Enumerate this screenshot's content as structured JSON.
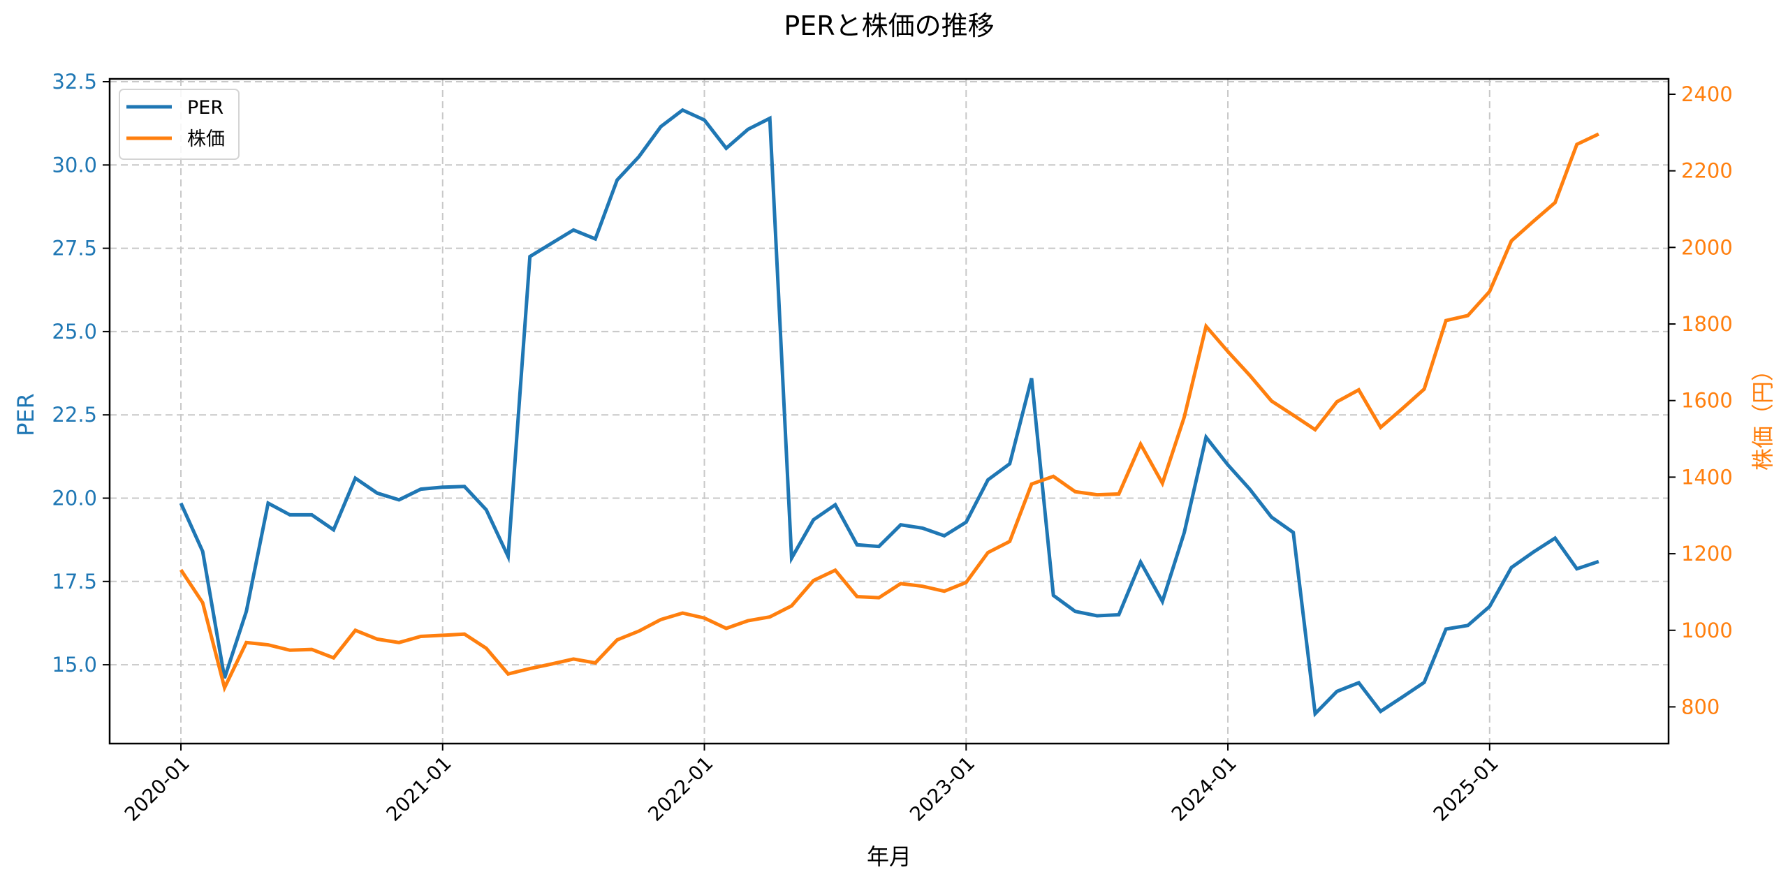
{
  "chart_data": {
    "type": "line",
    "title": "PERと株価の推移",
    "xlabel": "年月",
    "ylabel": "PER",
    "ylabel_right": "株価（円）",
    "ylim": [
      12.9,
      32.7
    ],
    "ylim_right": [
      730,
      2420
    ],
    "grid": true,
    "legend_position": "upper left",
    "x_ticks": [
      "2020-01",
      "2021-01",
      "2022-01",
      "2023-01",
      "2024-01",
      "2025-01"
    ],
    "y_ticks_left": [
      "15.0",
      "17.5",
      "20.0",
      "22.5",
      "25.0",
      "27.5",
      "30.0",
      "32.5"
    ],
    "y_ticks_right": [
      "800",
      "1000",
      "1200",
      "1400",
      "1600",
      "1800",
      "2000",
      "2200",
      "2400"
    ],
    "x": [
      "2020-01",
      "2020-02",
      "2020-03",
      "2020-04",
      "2020-05",
      "2020-06",
      "2020-07",
      "2020-08",
      "2020-09",
      "2020-10",
      "2020-11",
      "2020-12",
      "2021-01",
      "2021-02",
      "2021-03",
      "2021-04",
      "2021-05",
      "2021-06",
      "2021-07",
      "2021-08",
      "2021-09",
      "2021-10",
      "2021-11",
      "2021-12",
      "2022-01",
      "2022-02",
      "2022-03",
      "2022-04",
      "2022-05",
      "2022-06",
      "2022-07",
      "2022-08",
      "2022-09",
      "2022-10",
      "2022-11",
      "2022-12",
      "2023-01",
      "2023-02",
      "2023-03",
      "2023-04",
      "2023-05",
      "2023-06",
      "2023-07",
      "2023-08",
      "2023-09",
      "2023-10",
      "2023-11",
      "2023-12",
      "2024-01",
      "2024-02",
      "2024-03",
      "2024-04",
      "2024-05",
      "2024-06",
      "2024-07",
      "2024-08",
      "2024-09",
      "2024-10",
      "2024-11",
      "2024-12",
      "2025-01",
      "2025-02",
      "2025-03",
      "2025-04",
      "2025-05",
      "2025-06"
    ],
    "series": [
      {
        "name": "PER",
        "axis": "left",
        "color": "#1f77b4",
        "values": [
          19.85,
          18.4,
          14.6,
          16.6,
          19.85,
          19.5,
          19.5,
          19.05,
          20.6,
          20.15,
          19.95,
          20.27,
          20.33,
          20.35,
          19.65,
          18.25,
          27.25,
          27.65,
          28.05,
          27.78,
          29.55,
          30.25,
          31.15,
          31.65,
          31.35,
          30.5,
          31.07,
          31.4,
          18.2,
          19.35,
          19.8,
          18.6,
          18.55,
          19.2,
          19.1,
          18.87,
          19.28,
          20.55,
          21.03,
          23.6,
          17.08,
          16.6,
          16.47,
          16.5,
          18.08,
          16.9,
          18.97,
          21.83,
          21.0,
          20.27,
          19.43,
          18.97,
          13.53,
          14.2,
          14.46,
          13.6,
          14.03,
          14.47,
          16.07,
          16.18,
          16.75,
          17.92,
          18.38,
          18.8,
          17.88,
          18.1
        ]
      },
      {
        "name": "株価",
        "axis": "right",
        "color": "#ff7f0e",
        "values": [
          1158,
          1072,
          850,
          968,
          962,
          948,
          950,
          928,
          1000,
          977,
          968,
          984,
          987,
          990,
          953,
          886,
          900,
          912,
          925,
          915,
          975,
          998,
          1028,
          1045,
          1032,
          1005,
          1025,
          1035,
          1064,
          1130,
          1157,
          1088,
          1085,
          1122,
          1115,
          1102,
          1125,
          1203,
          1232,
          1382,
          1402,
          1362,
          1354,
          1356,
          1486,
          1384,
          1557,
          1794,
          1728,
          1666,
          1599,
          1562,
          1524,
          1597,
          1628,
          1530,
          1579,
          1630,
          1809,
          1822,
          1885,
          2017,
          2068,
          2117,
          2269,
          2296
        ]
      }
    ]
  },
  "legend": {
    "items": [
      {
        "label": "PER",
        "color": "#1f77b4"
      },
      {
        "label": "株価",
        "color": "#ff7f0e"
      }
    ]
  },
  "colors": {
    "per": "#1f77b4",
    "price": "#ff7f0e",
    "grid": "#c8c8c8",
    "axis": "#000000"
  }
}
